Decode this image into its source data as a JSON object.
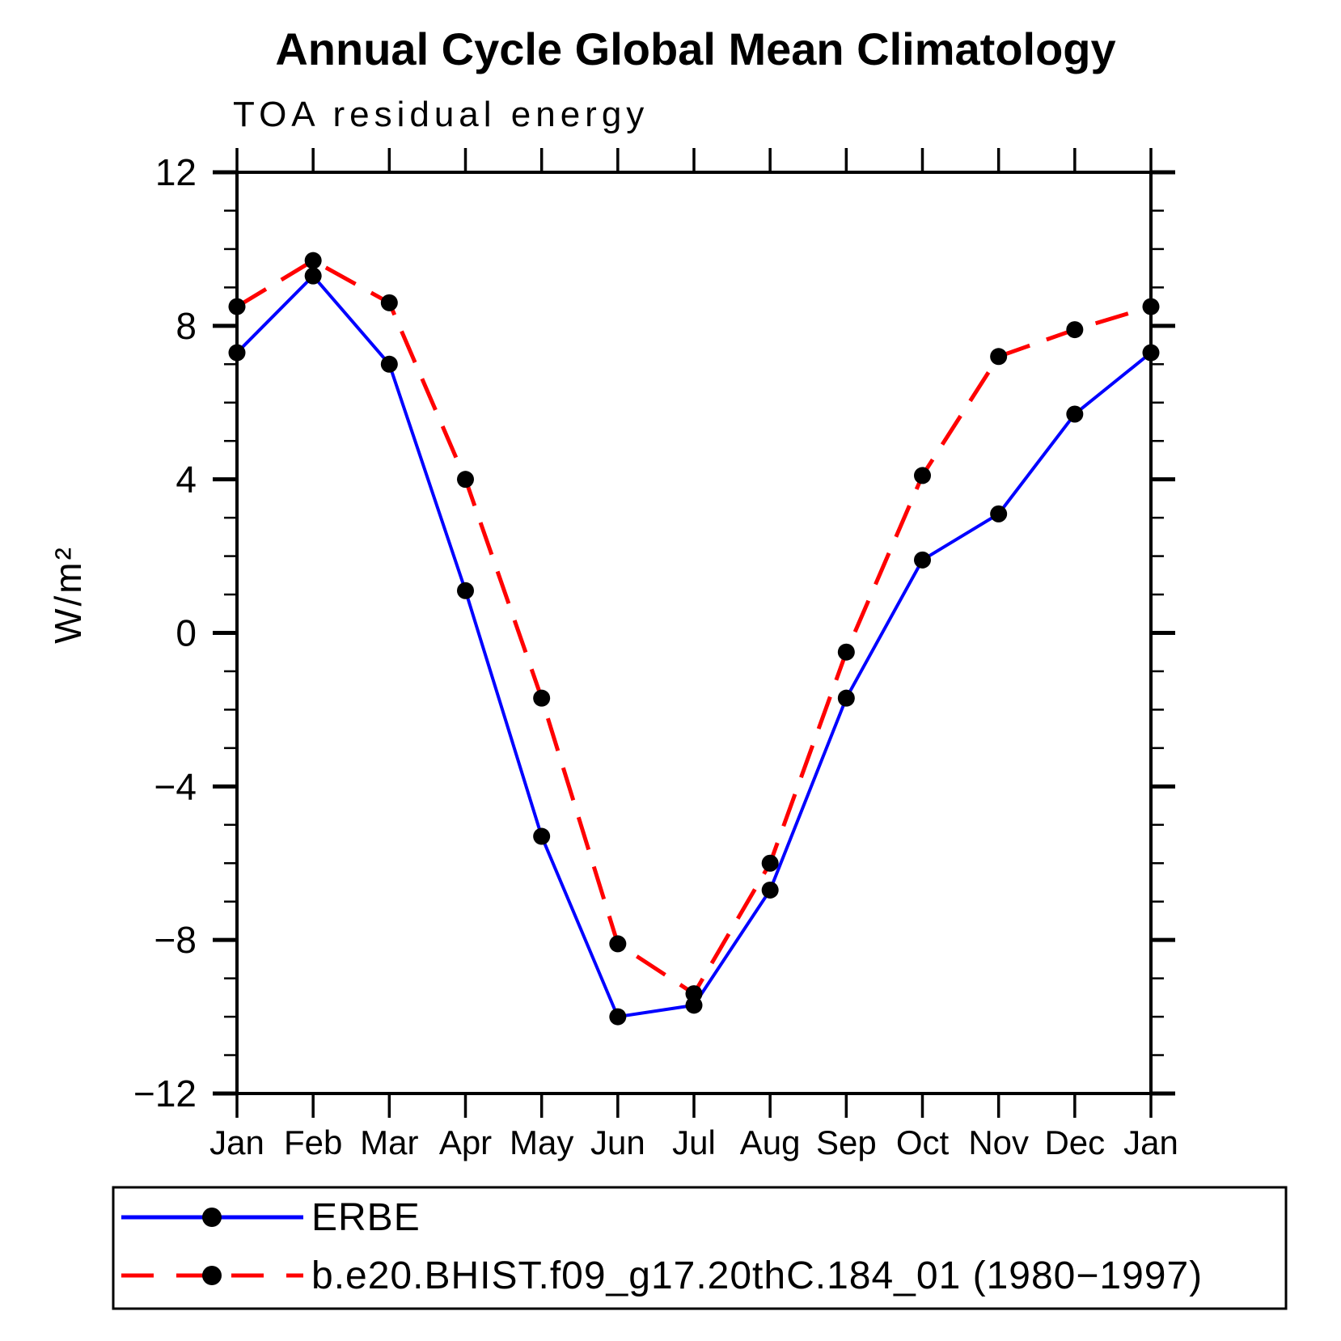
{
  "chart_data": {
    "type": "line",
    "title": "Annual Cycle Global Mean Climatology",
    "subtitle": "TOA residual energy",
    "ylabel": "W/m²",
    "xlabel": "",
    "categories": [
      "Jan",
      "Feb",
      "Mar",
      "Apr",
      "May",
      "Jun",
      "Jul",
      "Aug",
      "Sep",
      "Oct",
      "Nov",
      "Dec",
      "Jan"
    ],
    "series": [
      {
        "name": "ERBE",
        "color": "#0000ff",
        "line_style": "solid",
        "marker": "circle",
        "marker_color": "#000000",
        "values": [
          7.3,
          9.3,
          7.0,
          1.1,
          -5.3,
          -10.0,
          -9.7,
          -6.7,
          -1.7,
          1.9,
          3.1,
          5.7,
          7.3
        ]
      },
      {
        "name": "b.e20.BHIST.f09_g17.20thC.184_01 (1980−1997)",
        "color": "#ff0000",
        "line_style": "dashed",
        "marker": "circle",
        "marker_color": "#000000",
        "values": [
          8.5,
          9.7,
          8.6,
          4.0,
          -1.7,
          -8.1,
          -9.4,
          -6.0,
          -0.5,
          4.1,
          7.2,
          7.9,
          8.5
        ]
      }
    ],
    "ylim": [
      -12,
      12
    ],
    "ytick_major": [
      -12,
      -8,
      -4,
      0,
      4,
      8,
      12
    ],
    "ytick_labels": [
      "−12",
      "−8",
      "−4",
      "0",
      "4",
      "8",
      "12"
    ],
    "ytick_minor_step": 1,
    "grid": false,
    "axis_color": "#000000",
    "background": "#ffffff",
    "legend_position": "bottom-left-box"
  }
}
